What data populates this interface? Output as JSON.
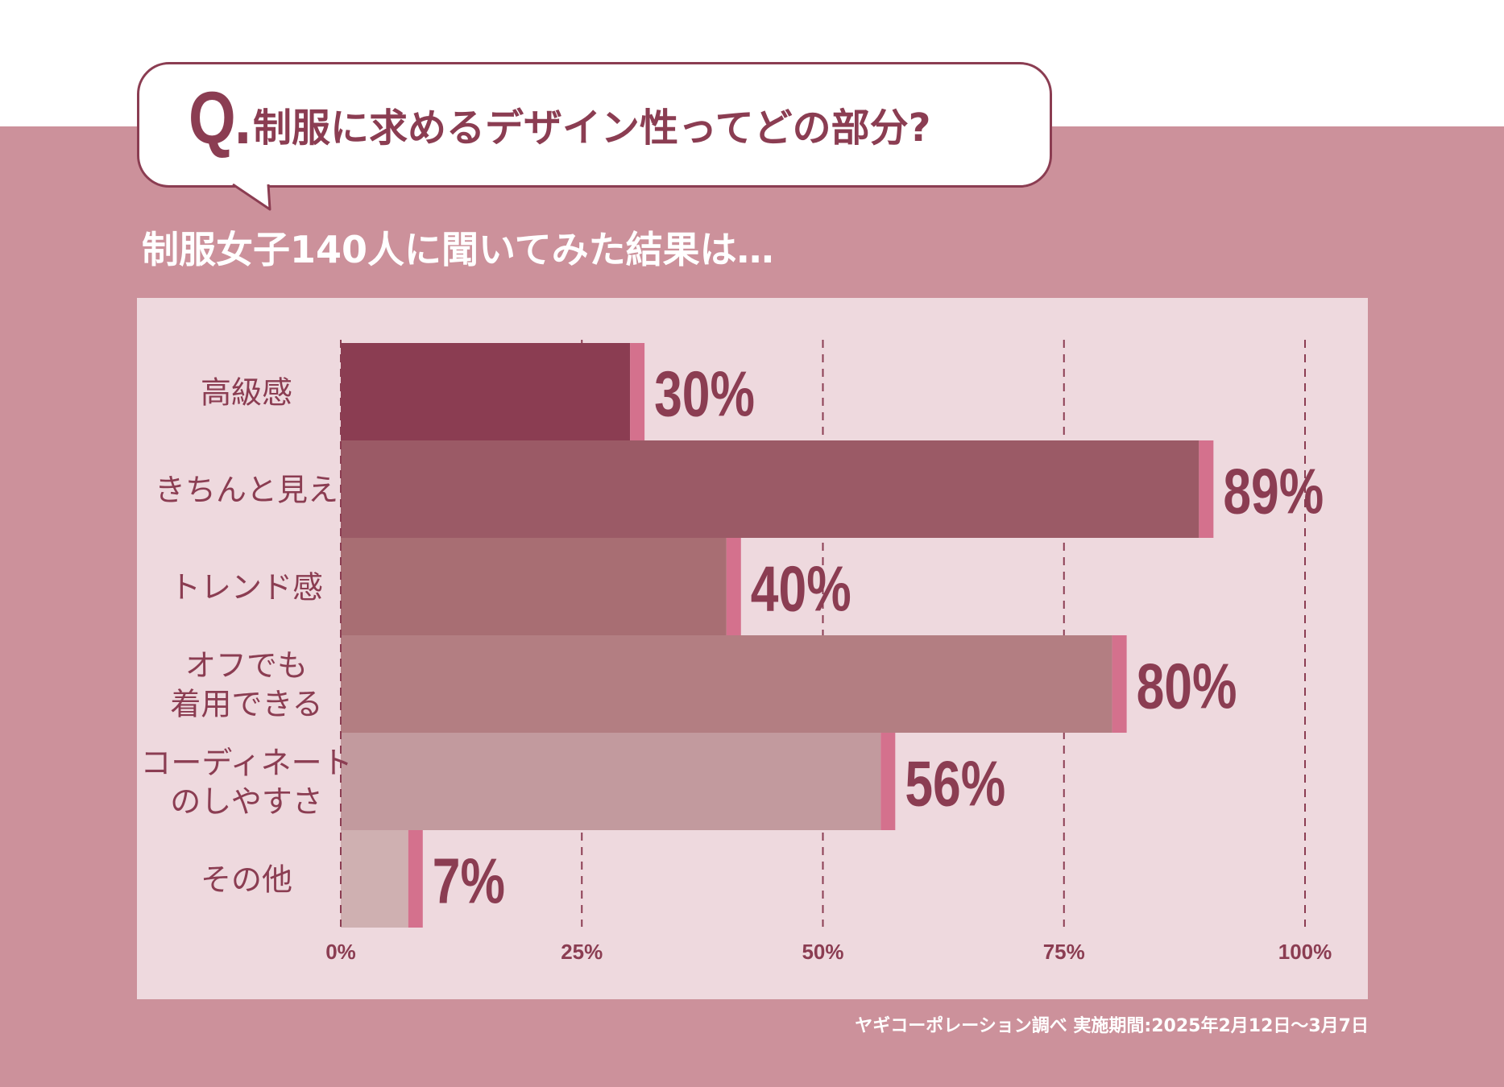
{
  "header": {
    "q_mark": "Q.",
    "question": "制服に求めるデザイン性ってどの部分?",
    "subtitle": "制服女子140人に聞いてみた結果は…"
  },
  "footer": {
    "source": "ヤギコーポレーション調べ 実施期間:2025年2月12日～3月7日"
  },
  "colors": {
    "accent": "#8b3d52",
    "band": "#cc919b",
    "panel": "#eed9de",
    "cap": "#d4718d"
  },
  "chart_data": {
    "type": "bar",
    "orientation": "horizontal",
    "title": "",
    "xlabel": "",
    "ylabel": "",
    "categories": [
      [
        "高級感"
      ],
      [
        "きちんと見え"
      ],
      [
        "トレンド感"
      ],
      [
        "オフでも",
        "着用できる"
      ],
      [
        "コーディネート",
        "のしやすさ"
      ],
      [
        "その他"
      ]
    ],
    "values": [
      30,
      89,
      40,
      80,
      56,
      7
    ],
    "value_labels": [
      "30%",
      "89%",
      "40%",
      "80%",
      "56%",
      "7%"
    ],
    "bar_colors": [
      "#8b3d52",
      "#9b5a66",
      "#a86e73",
      "#b37e82",
      "#c29a9e",
      "#cfb0b1"
    ],
    "xlim": [
      0,
      100
    ],
    "xticks": [
      0,
      25,
      50,
      75,
      100
    ],
    "xtick_labels": [
      "0%",
      "25%",
      "50%",
      "75%",
      "100%"
    ],
    "grid": "vertical-dashed",
    "legend": "none"
  }
}
